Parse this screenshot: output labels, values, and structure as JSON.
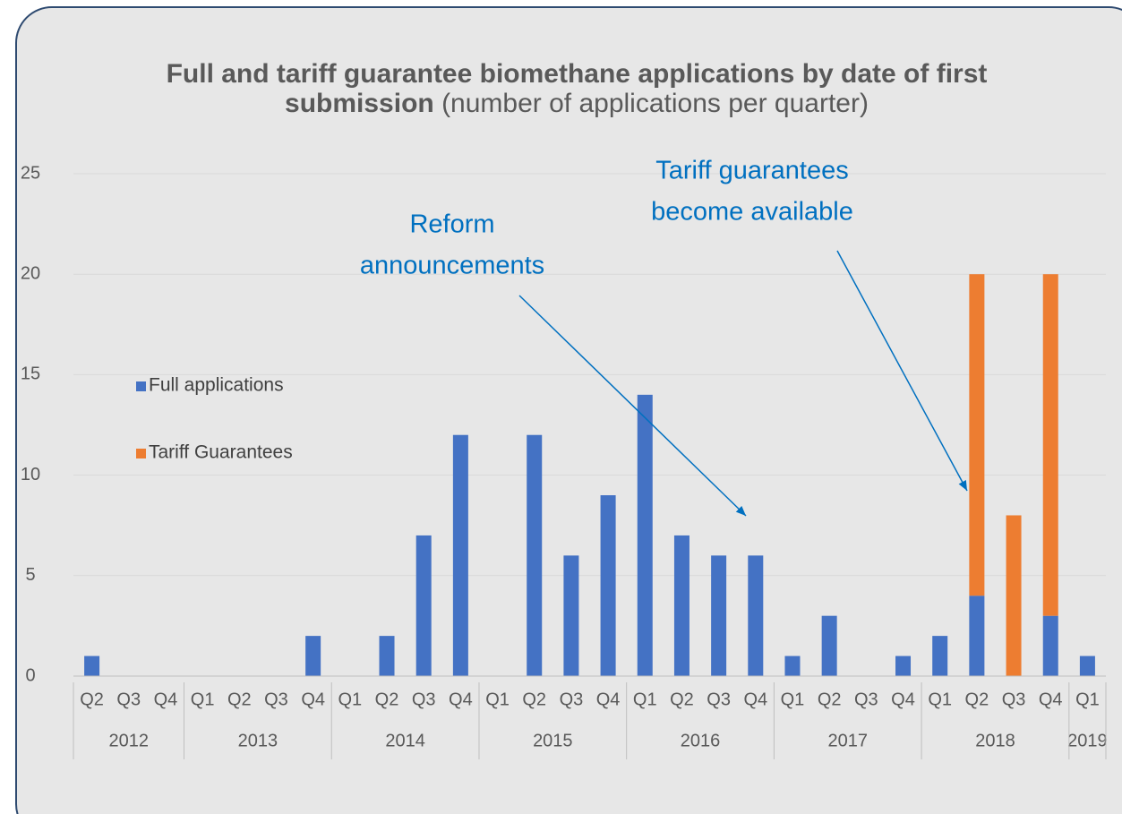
{
  "chart_data": {
    "type": "stacked_bar",
    "title": "Full and tariff guarantee biomethane applications by date of first submission",
    "subtitle": "(number of applications per quarter)",
    "categories": [
      "Q2",
      "Q3",
      "Q4",
      "Q1",
      "Q2",
      "Q3",
      "Q4",
      "Q1",
      "Q2",
      "Q3",
      "Q4",
      "Q1",
      "Q2",
      "Q3",
      "Q4",
      "Q1",
      "Q2",
      "Q3",
      "Q4",
      "Q1",
      "Q2",
      "Q3",
      "Q4",
      "Q1",
      "Q2",
      "Q3",
      "Q4",
      "Q1"
    ],
    "category_groups": [
      "2012",
      null,
      null,
      "2013",
      null,
      null,
      null,
      "2014",
      null,
      null,
      null,
      "2015",
      null,
      null,
      null,
      "2016",
      null,
      null,
      null,
      "2017",
      null,
      null,
      null,
      "2018",
      null,
      null,
      null,
      "2019"
    ],
    "series": [
      {
        "name": "Full applications",
        "color": "#4472c4",
        "values": [
          1,
          0,
          0,
          0,
          0,
          0,
          2,
          0,
          2,
          7,
          12,
          0,
          12,
          6,
          9,
          14,
          7,
          6,
          6,
          1,
          3,
          0,
          1,
          2,
          4,
          0,
          3,
          1
        ]
      },
      {
        "name": "Tariff Guarantees",
        "color": "#ed7d31",
        "values": [
          0,
          0,
          0,
          0,
          0,
          0,
          0,
          0,
          0,
          0,
          0,
          0,
          0,
          0,
          0,
          0,
          0,
          0,
          0,
          0,
          0,
          0,
          0,
          0,
          16,
          8,
          17,
          0
        ]
      }
    ],
    "ylim": [
      0,
      25
    ],
    "yticks": [
      0,
      5,
      10,
      15,
      20,
      25
    ],
    "grid": true,
    "annotations": [
      {
        "text": [
          "Reform",
          "announcements"
        ],
        "color": "#0070c0"
      },
      {
        "text": [
          "Tariff guarantees",
          "become available"
        ],
        "color": "#0070c0"
      }
    ]
  }
}
